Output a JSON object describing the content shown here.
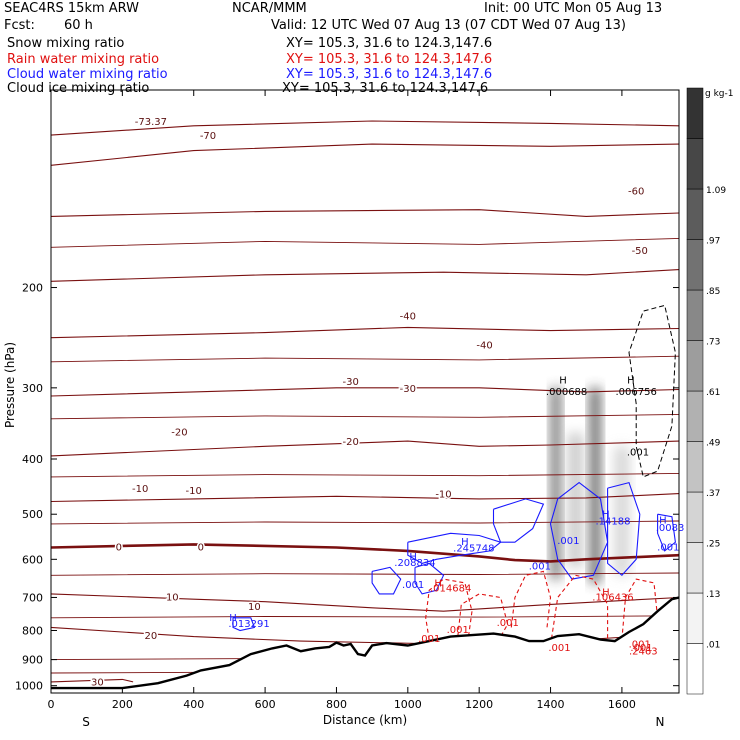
{
  "header": {
    "model": "SEAC4RS 15km ARW",
    "org": "NCAR/MMM",
    "init": "Init: 00 UTC Mon 05 Aug 13",
    "fcst_label": "Fcst:",
    "fcst_value": "60 h",
    "valid": "Valid: 12 UTC Wed 07 Aug 13 (07 CDT Wed 07 Aug 13)"
  },
  "fields": [
    {
      "name": "Snow mixing ratio",
      "xy": "XY= 105.3, 31.6 to 124.3,147.6",
      "color": "#000000"
    },
    {
      "name": "Rain water mixing ratio",
      "xy": "XY= 105.3, 31.6 to 124.3,147.6",
      "color": "#e01010"
    },
    {
      "name": "Cloud water mixing ratio",
      "xy": "XY= 105.3, 31.6 to 124.3,147.6",
      "color": "#1a1aff"
    },
    {
      "name": "Cloud ice mixing ratio",
      "xy": "XY= 105.3, 31.6 to 124.3,147.6",
      "color": "#000000"
    }
  ],
  "chart_data": {
    "type": "cross-section",
    "xlabel": "Distance (km)",
    "ylabel": "Pressure (hPa)",
    "x_ticks": [
      0,
      200,
      400,
      600,
      800,
      1000,
      1200,
      1400,
      1600
    ],
    "y_ticks": [
      200,
      300,
      400,
      500,
      600,
      700,
      800,
      900,
      1000
    ],
    "xlim": [
      0,
      1760
    ],
    "ylim": [
      1030,
      90
    ],
    "y_scale": "log",
    "end_labels": {
      "left": "S",
      "right": "N"
    },
    "colorbar": {
      "unit": "g kg-1",
      "labels": [
        ".01",
        ".13",
        ".25",
        ".37",
        ".49",
        ".61",
        ".73",
        ".85",
        ".97",
        "1.09"
      ],
      "colors": [
        "#ffffff",
        "#f3f3f3",
        "#e4e4e4",
        "#d4d4d4",
        "#c3c3c3",
        "#b1b1b1",
        "#9d9d9d",
        "#888888",
        "#727272",
        "#5c5c5c",
        "#474747",
        "#333333"
      ]
    },
    "temperature_contour_labels": [
      "-73.37",
      "-70",
      "-60",
      "-50",
      "-40",
      "-30",
      "-20",
      "-10",
      "0",
      "10",
      "20",
      "30"
    ],
    "zero_isotherm_label": "0",
    "terrain": [
      [
        0,
        1010
      ],
      [
        200,
        1010
      ],
      [
        300,
        990
      ],
      [
        380,
        960
      ],
      [
        420,
        940
      ],
      [
        500,
        920
      ],
      [
        560,
        880
      ],
      [
        620,
        860
      ],
      [
        660,
        850
      ],
      [
        700,
        870
      ],
      [
        740,
        860
      ],
      [
        780,
        855
      ],
      [
        800,
        840
      ],
      [
        820,
        850
      ],
      [
        840,
        845
      ],
      [
        860,
        880
      ],
      [
        880,
        885
      ],
      [
        900,
        850
      ],
      [
        940,
        842
      ],
      [
        1000,
        850
      ],
      [
        1060,
        835
      ],
      [
        1120,
        820
      ],
      [
        1180,
        815
      ],
      [
        1240,
        810
      ],
      [
        1300,
        820
      ],
      [
        1340,
        835
      ],
      [
        1380,
        835
      ],
      [
        1420,
        818
      ],
      [
        1480,
        812
      ],
      [
        1540,
        830
      ],
      [
        1580,
        835
      ],
      [
        1620,
        805
      ],
      [
        1660,
        780
      ],
      [
        1700,
        740
      ],
      [
        1740,
        705
      ],
      [
        1760,
        700
      ]
    ],
    "snow_labels": [
      {
        "text": "H",
        "x": 1435,
        "p": 290
      },
      {
        "text": ".000688",
        "x": 1445,
        "p": 304
      },
      {
        "text": "H",
        "x": 1625,
        "p": 290
      },
      {
        "text": ".006756",
        "x": 1640,
        "p": 304
      },
      {
        "text": ".001",
        "x": 1645,
        "p": 388
      }
    ],
    "cloud_water_labels": [
      {
        "text": "H",
        "x": 1160,
        "p": 557
      },
      {
        "text": ".245748",
        "x": 1185,
        "p": 572
      },
      {
        "text": "H",
        "x": 1015,
        "p": 592
      },
      {
        "text": ".208834",
        "x": 1020,
        "p": 606
      },
      {
        "text": ".001",
        "x": 1015,
        "p": 663
      },
      {
        "text": ".001",
        "x": 1450,
        "p": 555
      },
      {
        "text": "H",
        "x": 1555,
        "p": 499
      },
      {
        "text": ".14188",
        "x": 1575,
        "p": 513
      },
      {
        "text": "H",
        "x": 1715,
        "p": 511
      },
      {
        "text": ".0083",
        "x": 1735,
        "p": 526
      },
      {
        "text": ".001",
        "x": 1730,
        "p": 570
      },
      {
        "text": ".001",
        "x": 1370,
        "p": 615
      },
      {
        "text": "H",
        "x": 510,
        "p": 758
      },
      {
        "text": ".013291",
        "x": 555,
        "p": 776
      }
    ],
    "rain_labels": [
      {
        "text": "H",
        "x": 1085,
        "p": 659
      },
      {
        "text": ".014684",
        "x": 1120,
        "p": 673
      },
      {
        "text": "H",
        "x": 1555,
        "p": 683
      },
      {
        "text": ".106436",
        "x": 1575,
        "p": 698
      },
      {
        "text": ".001",
        "x": 1060,
        "p": 824
      },
      {
        "text": ".001",
        "x": 1140,
        "p": 796
      },
      {
        "text": ".001",
        "x": 1280,
        "p": 773
      },
      {
        "text": ".001",
        "x": 1425,
        "p": 855
      },
      {
        "text": ".001",
        "x": 1650,
        "p": 843
      },
      {
        "text": ".001",
        "x": 1655,
        "p": 855
      },
      {
        "text": ".2463",
        "x": 1660,
        "p": 867
      }
    ]
  }
}
